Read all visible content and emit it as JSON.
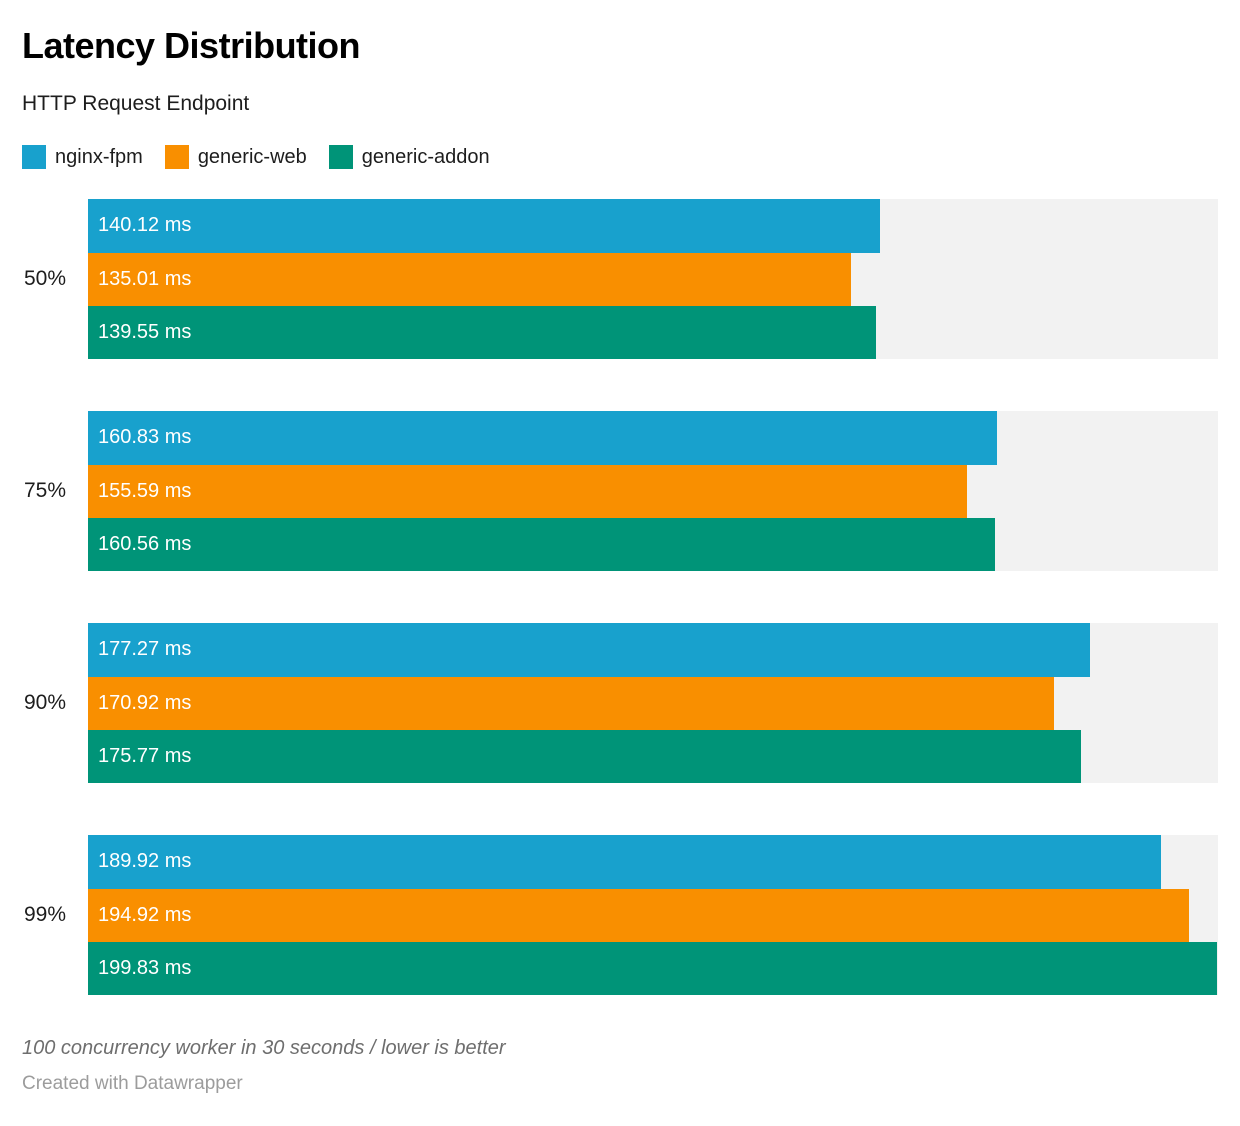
{
  "header": {
    "title": "Latency Distribution",
    "subtitle": "HTTP Request Endpoint"
  },
  "chart_data": {
    "type": "bar",
    "orientation": "horizontal",
    "title": "Latency Distribution",
    "subtitle": "HTTP Request Endpoint",
    "categories": [
      "50%",
      "75%",
      "90%",
      "99%"
    ],
    "series": [
      {
        "name": "nginx-fpm",
        "color": "#18a1cd",
        "values": [
          140.12,
          160.83,
          177.27,
          189.92
        ]
      },
      {
        "name": "generic-web",
        "color": "#f98f00",
        "values": [
          135.01,
          155.59,
          170.92,
          194.92
        ]
      },
      {
        "name": "generic-addon",
        "color": "#009478",
        "values": [
          139.55,
          160.56,
          175.77,
          199.83
        ]
      }
    ],
    "value_suffix": " ms",
    "xlim": [
      0,
      200
    ],
    "grid": false,
    "legend_position": "top",
    "track_color": "#f2f2f2",
    "bar_labels": true
  },
  "footer": {
    "note": "100 concurrency worker in 30 seconds / lower is better",
    "attribution": "Created with Datawrapper"
  }
}
